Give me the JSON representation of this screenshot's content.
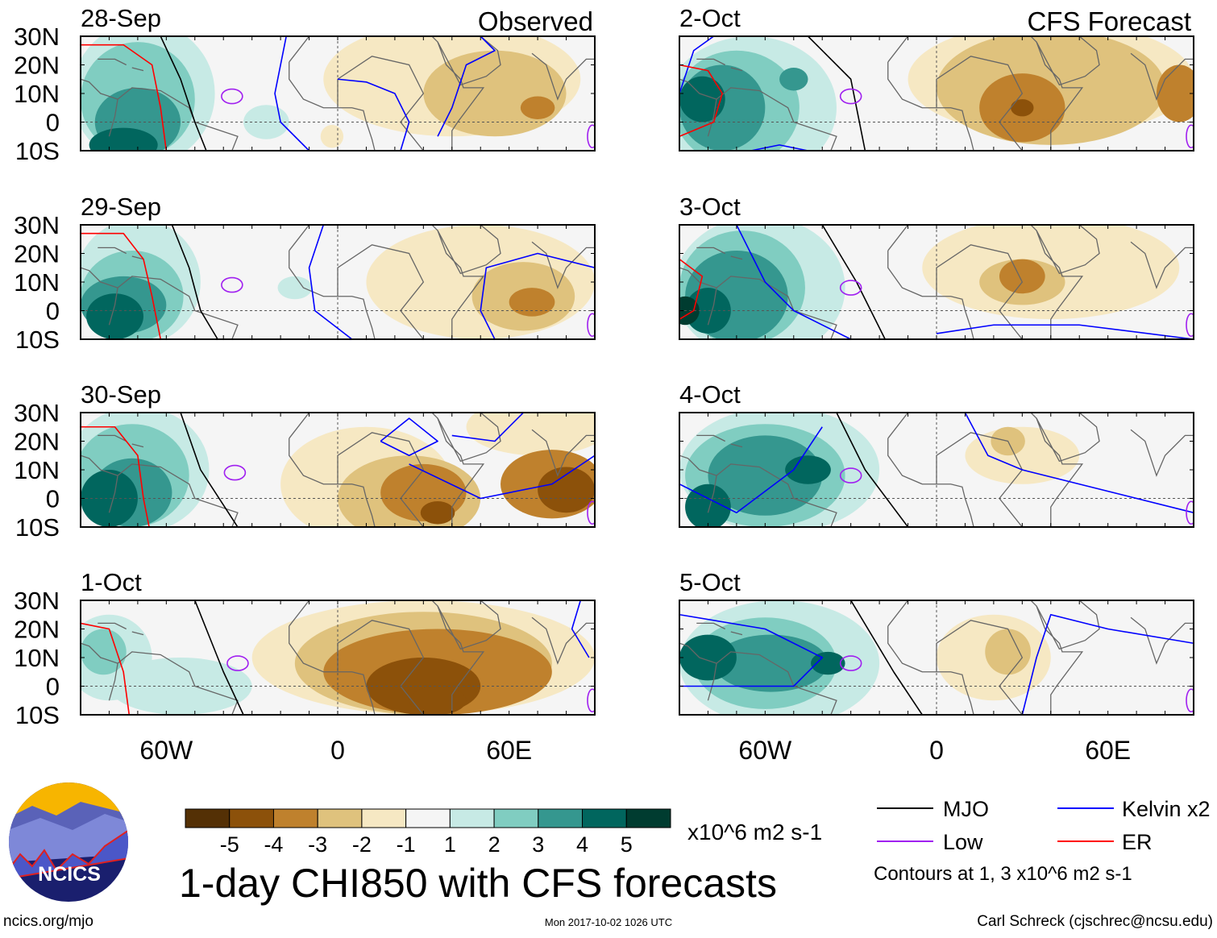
{
  "figure_title": "1-day CHI850 with CFS forecasts",
  "column_labels": {
    "observed": "Observed",
    "forecast": "CFS Forecast"
  },
  "lat_labels": [
    "30N",
    "20N",
    "10N",
    "0",
    "10S"
  ],
  "lon_labels": [
    "60W",
    "0",
    "60E"
  ],
  "colorbar": {
    "colors": [
      "#543005",
      "#8c510a",
      "#bf812d",
      "#dfc27d",
      "#f6e8c3",
      "#f5f5f5",
      "#c7eae5",
      "#80cdc1",
      "#35978f",
      "#01665e",
      "#003c30"
    ],
    "labels": [
      "-5",
      "-4",
      "-3",
      "-2",
      "-1",
      "1",
      "2",
      "3",
      "4",
      "5"
    ],
    "units": "x10^6 m2 s-1"
  },
  "legend": {
    "mjo": {
      "label": "MJO",
      "color": "#000000"
    },
    "kelvin": {
      "label": "Kelvin x2",
      "color": "#0000ff"
    },
    "low": {
      "label": "Low",
      "color": "#a020f0"
    },
    "er": {
      "label": "ER",
      "color": "#ff0000"
    },
    "contours_note": "Contours at 1, 3 x10^6 m2 s-1"
  },
  "logo_text": "NCICS",
  "footer": {
    "url": "ncics.org/mjo",
    "timestamp": "Mon 2017-10-02 1026 UTC",
    "author": "Carl Schreck (cjschrec@ncsu.edu)"
  },
  "chart_data": {
    "type": "heatmap",
    "lon_range": [
      -90,
      90
    ],
    "lat_range": [
      -10,
      30
    ],
    "panels": [
      {
        "date": "28-Sep",
        "column": "observed",
        "anomaly_blobs": [
          [
            -68,
            10,
            25,
            25,
            1
          ],
          [
            -70,
            8,
            20,
            20,
            2
          ],
          [
            -70,
            0,
            15,
            12,
            3
          ],
          [
            -75,
            -8,
            12,
            6,
            4
          ],
          [
            -25,
            0,
            8,
            6,
            1
          ],
          [
            40,
            15,
            45,
            20,
            -1
          ],
          [
            55,
            10,
            25,
            15,
            -2
          ],
          [
            -2,
            -5,
            4,
            4,
            -1
          ],
          [
            70,
            5,
            6,
            4,
            -3
          ]
        ],
        "mjo": [
          [
            [
              -62,
              30
            ],
            [
              -55,
              15
            ],
            [
              -50,
              0
            ],
            [
              -46,
              -10
            ]
          ]
        ],
        "kelvin": [
          [
            [
              -18,
              30
            ],
            [
              -22,
              10
            ],
            [
              -20,
              0
            ],
            [
              -10,
              -10
            ]
          ],
          [
            [
              0,
              15
            ],
            [
              10,
              14
            ],
            [
              20,
              10
            ],
            [
              25,
              0
            ],
            [
              22,
              -10
            ]
          ],
          [
            [
              35,
              -5
            ],
            [
              40,
              5
            ],
            [
              45,
              20
            ],
            [
              55,
              25
            ],
            [
              50,
              30
            ]
          ]
        ],
        "low": [
          [
            -37,
            9
          ]
        ],
        "er": [
          [
            [
              -90,
              27
            ],
            [
              -75,
              27
            ],
            [
              -65,
              20
            ],
            [
              -62,
              5
            ],
            [
              -60,
              -10
            ]
          ]
        ]
      },
      {
        "date": "29-Sep",
        "column": "observed",
        "anomaly_blobs": [
          [
            -70,
            10,
            22,
            22,
            1
          ],
          [
            -72,
            5,
            18,
            16,
            2
          ],
          [
            -75,
            2,
            15,
            10,
            3
          ],
          [
            -78,
            -2,
            10,
            8,
            4
          ],
          [
            -15,
            8,
            6,
            4,
            1
          ],
          [
            50,
            10,
            40,
            20,
            -1
          ],
          [
            65,
            5,
            18,
            12,
            -2
          ],
          [
            68,
            3,
            8,
            5,
            -3
          ]
        ],
        "mjo": [
          [
            [
              -58,
              30
            ],
            [
              -52,
              15
            ],
            [
              -48,
              0
            ],
            [
              -42,
              -10
            ]
          ]
        ],
        "kelvin": [
          [
            [
              -5,
              30
            ],
            [
              -10,
              15
            ],
            [
              -8,
              0
            ],
            [
              5,
              -10
            ]
          ],
          [
            [
              55,
              -10
            ],
            [
              50,
              0
            ],
            [
              52,
              15
            ],
            [
              70,
              20
            ],
            [
              90,
              15
            ]
          ]
        ],
        "low": [
          [
            -37,
            9
          ]
        ],
        "er": [
          [
            [
              -90,
              27
            ],
            [
              -75,
              27
            ],
            [
              -68,
              18
            ],
            [
              -65,
              5
            ],
            [
              -62,
              -10
            ]
          ]
        ]
      },
      {
        "date": "30-Sep",
        "column": "observed",
        "anomaly_blobs": [
          [
            -70,
            10,
            25,
            22,
            1
          ],
          [
            -72,
            8,
            20,
            18,
            2
          ],
          [
            -72,
            2,
            14,
            12,
            3
          ],
          [
            -80,
            0,
            10,
            10,
            4
          ],
          [
            10,
            5,
            30,
            20,
            -1
          ],
          [
            70,
            25,
            25,
            10,
            -1
          ],
          [
            25,
            0,
            25,
            15,
            -2
          ],
          [
            30,
            2,
            15,
            10,
            -3
          ],
          [
            75,
            5,
            18,
            12,
            -3
          ],
          [
            35,
            -5,
            6,
            4,
            -4
          ],
          [
            80,
            3,
            10,
            8,
            -4
          ]
        ],
        "mjo": [
          [
            [
              -55,
              30
            ],
            [
              -48,
              10
            ],
            [
              -35,
              -10
            ]
          ]
        ],
        "kelvin": [
          [
            [
              15,
              20
            ],
            [
              25,
              28
            ],
            [
              35,
              20
            ],
            [
              25,
              15
            ],
            [
              15,
              20
            ]
          ],
          [
            [
              25,
              12
            ],
            [
              50,
              0
            ],
            [
              75,
              5
            ],
            [
              90,
              15
            ]
          ],
          [
            [
              40,
              22
            ],
            [
              55,
              20
            ],
            [
              65,
              30
            ]
          ]
        ],
        "low": [
          [
            -36,
            9
          ]
        ],
        "er": [
          [
            [
              -90,
              25
            ],
            [
              -78,
              25
            ],
            [
              -70,
              15
            ],
            [
              -68,
              0
            ],
            [
              -66,
              -10
            ]
          ]
        ]
      },
      {
        "date": "1-Oct",
        "column": "observed",
        "anomaly_blobs": [
          [
            -80,
            10,
            15,
            15,
            1
          ],
          [
            -55,
            0,
            25,
            10,
            1
          ],
          [
            -82,
            12,
            8,
            8,
            2
          ],
          [
            30,
            10,
            60,
            20,
            -1
          ],
          [
            30,
            8,
            45,
            18,
            -2
          ],
          [
            35,
            5,
            40,
            15,
            -3
          ],
          [
            30,
            0,
            20,
            10,
            -4
          ],
          [
            35,
            -5,
            10,
            5,
            -4
          ]
        ],
        "mjo": [
          [
            [
              -50,
              30
            ],
            [
              -40,
              5
            ],
            [
              -33,
              -10
            ]
          ]
        ],
        "kelvin": [
          [
            [
              85,
              30
            ],
            [
              82,
              20
            ],
            [
              88,
              10
            ]
          ]
        ],
        "low": [
          [
            -35,
            8
          ]
        ],
        "er": [
          [
            [
              -90,
              22
            ],
            [
              -80,
              20
            ],
            [
              -75,
              5
            ],
            [
              -73,
              -10
            ]
          ]
        ]
      },
      {
        "date": "2-Oct",
        "column": "forecast",
        "anomaly_blobs": [
          [
            -65,
            5,
            30,
            25,
            1
          ],
          [
            -70,
            5,
            22,
            20,
            2
          ],
          [
            -75,
            5,
            15,
            15,
            3
          ],
          [
            -50,
            15,
            5,
            4,
            3
          ],
          [
            -82,
            8,
            8,
            8,
            4
          ],
          [
            40,
            15,
            50,
            20,
            -1
          ],
          [
            40,
            12,
            40,
            20,
            -2
          ],
          [
            30,
            5,
            15,
            12,
            -3
          ],
          [
            85,
            10,
            8,
            10,
            -3
          ],
          [
            30,
            5,
            4,
            3,
            -4
          ]
        ],
        "mjo": [
          [
            [
              -45,
              30
            ],
            [
              -30,
              15
            ],
            [
              -25,
              -10
            ]
          ]
        ],
        "kelvin": [
          [
            [
              -90,
              10
            ],
            [
              -85,
              25
            ],
            [
              -78,
              30
            ]
          ],
          [
            [
              -65,
              -10
            ],
            [
              -55,
              -8
            ],
            [
              -45,
              -10
            ]
          ]
        ],
        "low": [
          [
            -30,
            9
          ]
        ],
        "er": [
          [
            [
              -90,
              20
            ],
            [
              -80,
              18
            ],
            [
              -75,
              10
            ],
            [
              -78,
              0
            ],
            [
              -90,
              -5
            ]
          ]
        ]
      },
      {
        "date": "3-Oct",
        "column": "forecast",
        "anomaly_blobs": [
          [
            -62,
            8,
            30,
            25,
            1
          ],
          [
            -68,
            8,
            22,
            20,
            2
          ],
          [
            -70,
            5,
            18,
            16,
            3
          ],
          [
            -80,
            0,
            8,
            8,
            4
          ],
          [
            -88,
            0,
            5,
            5,
            5
          ],
          [
            40,
            15,
            45,
            18,
            -1
          ],
          [
            30,
            10,
            15,
            8,
            -2
          ],
          [
            30,
            12,
            8,
            6,
            -3
          ]
        ],
        "mjo": [
          [
            [
              -40,
              30
            ],
            [
              -28,
              10
            ],
            [
              -18,
              -10
            ]
          ]
        ],
        "kelvin": [
          [
            [
              -70,
              30
            ],
            [
              -60,
              10
            ],
            [
              -50,
              0
            ],
            [
              -30,
              -10
            ]
          ],
          [
            [
              0,
              -8
            ],
            [
              20,
              -5
            ],
            [
              50,
              -5
            ],
            [
              90,
              -10
            ]
          ]
        ],
        "low": [
          [
            -30,
            8
          ]
        ],
        "er": [
          [
            [
              -90,
              18
            ],
            [
              -82,
              12
            ],
            [
              -85,
              0
            ],
            [
              -90,
              -3
            ]
          ]
        ]
      },
      {
        "date": "4-Oct",
        "column": "forecast",
        "anomaly_blobs": [
          [
            -55,
            10,
            35,
            22,
            1
          ],
          [
            -60,
            8,
            28,
            18,
            2
          ],
          [
            -60,
            8,
            20,
            14,
            3
          ],
          [
            -80,
            -3,
            8,
            8,
            4
          ],
          [
            -45,
            10,
            8,
            5,
            4
          ],
          [
            30,
            15,
            20,
            10,
            -1
          ],
          [
            25,
            20,
            6,
            5,
            -2
          ]
        ],
        "mjo": [
          [
            [
              -35,
              30
            ],
            [
              -25,
              10
            ],
            [
              -10,
              -10
            ]
          ]
        ],
        "kelvin": [
          [
            [
              10,
              30
            ],
            [
              18,
              15
            ],
            [
              30,
              10
            ],
            [
              50,
              5
            ],
            [
              90,
              -5
            ]
          ],
          [
            [
              -90,
              5
            ],
            [
              -70,
              -5
            ],
            [
              -50,
              10
            ],
            [
              -40,
              25
            ]
          ]
        ],
        "low": [
          [
            -30,
            8
          ]
        ],
        "er": []
      },
      {
        "date": "5-Oct",
        "column": "forecast",
        "anomaly_blobs": [
          [
            -55,
            8,
            35,
            22,
            1
          ],
          [
            -60,
            8,
            25,
            16,
            2
          ],
          [
            -58,
            8,
            20,
            10,
            3
          ],
          [
            -80,
            10,
            10,
            8,
            4
          ],
          [
            -38,
            8,
            6,
            4,
            4
          ],
          [
            20,
            10,
            20,
            15,
            -1
          ],
          [
            25,
            12,
            8,
            8,
            -2
          ]
        ],
        "mjo": [
          [
            [
              -30,
              30
            ],
            [
              -15,
              5
            ],
            [
              -5,
              -10
            ]
          ]
        ],
        "kelvin": [
          [
            [
              -90,
              25
            ],
            [
              -60,
              20
            ],
            [
              -40,
              10
            ],
            [
              -50,
              0
            ],
            [
              -90,
              0
            ]
          ],
          [
            [
              30,
              -10
            ],
            [
              35,
              10
            ],
            [
              40,
              25
            ],
            [
              60,
              20
            ],
            [
              90,
              15
            ]
          ]
        ],
        "low": [
          [
            -30,
            8
          ]
        ],
        "er": []
      }
    ]
  }
}
